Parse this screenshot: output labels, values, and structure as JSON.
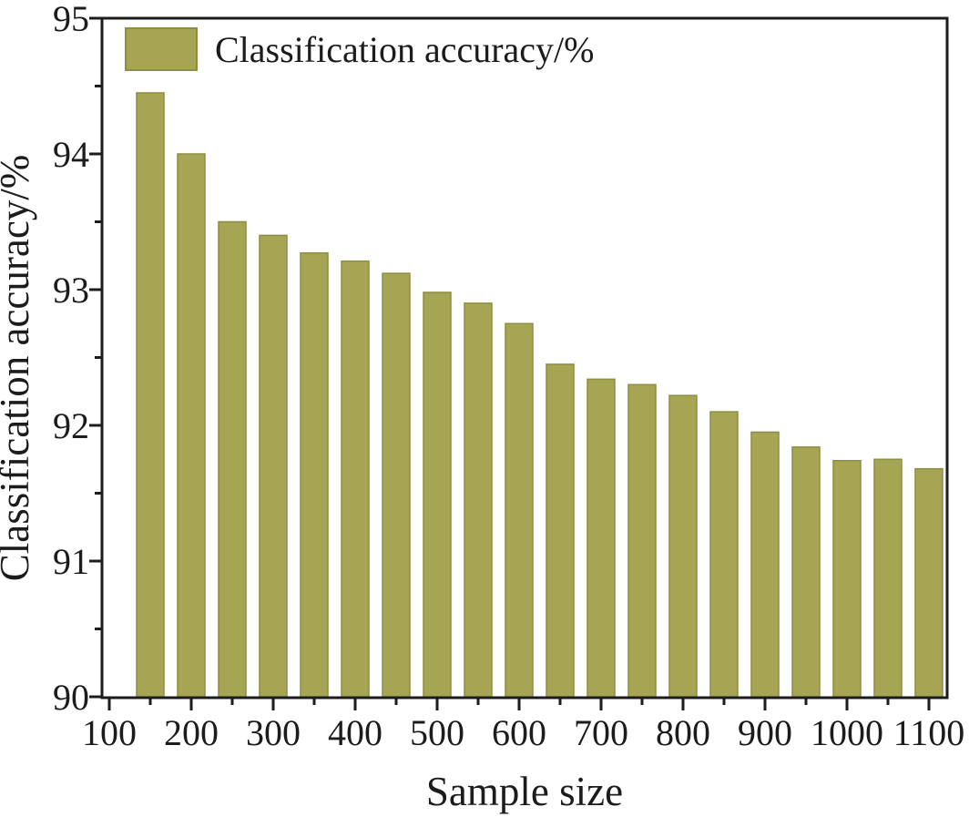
{
  "figure": {
    "background": "#ffffff",
    "frame_color": "#1c1c1c",
    "text_color": "#1c1c1c"
  },
  "legend": {
    "label": "Classification accuracy/%",
    "swatch_color": "#a5a553",
    "swatch_border_color": "#8d8e41"
  },
  "chart_data": {
    "type": "bar",
    "title": "",
    "xlabel": "Sample size",
    "ylabel": "Classification accuracy/%",
    "categories": [
      150,
      200,
      250,
      300,
      350,
      400,
      450,
      500,
      550,
      600,
      650,
      700,
      750,
      800,
      850,
      900,
      950,
      1000,
      1050,
      1100
    ],
    "values": [
      94.45,
      94.0,
      93.5,
      93.4,
      93.27,
      93.21,
      93.12,
      92.98,
      92.9,
      92.75,
      92.45,
      92.34,
      92.3,
      92.22,
      92.1,
      91.95,
      91.84,
      91.74,
      91.75,
      91.68
    ],
    "bar_color": "#a5a553",
    "bar_edge_color": "#8d8e41",
    "ylim": [
      90,
      95
    ],
    "xlim": [
      91,
      1117
    ],
    "y_ticks_major": [
      90,
      91,
      92,
      93,
      94,
      95
    ],
    "y_tick_labels": [
      "90",
      "91",
      "92",
      "93",
      "94",
      "95"
    ],
    "y_ticks_minor": [
      90.5,
      91.5,
      92.5,
      93.5,
      94.5
    ],
    "x_ticks_major": [
      100,
      200,
      300,
      400,
      500,
      600,
      700,
      800,
      900,
      1000,
      1100
    ],
    "x_tick_labels": [
      "100",
      "200",
      "300",
      "400",
      "500",
      "600",
      "700",
      "800",
      "900",
      "1000",
      "1100"
    ],
    "x_ticks_minor": [
      150,
      250,
      350,
      450,
      550,
      650,
      750,
      850,
      950,
      1050
    ],
    "grid": false,
    "legend_position": "top-left-inside"
  }
}
